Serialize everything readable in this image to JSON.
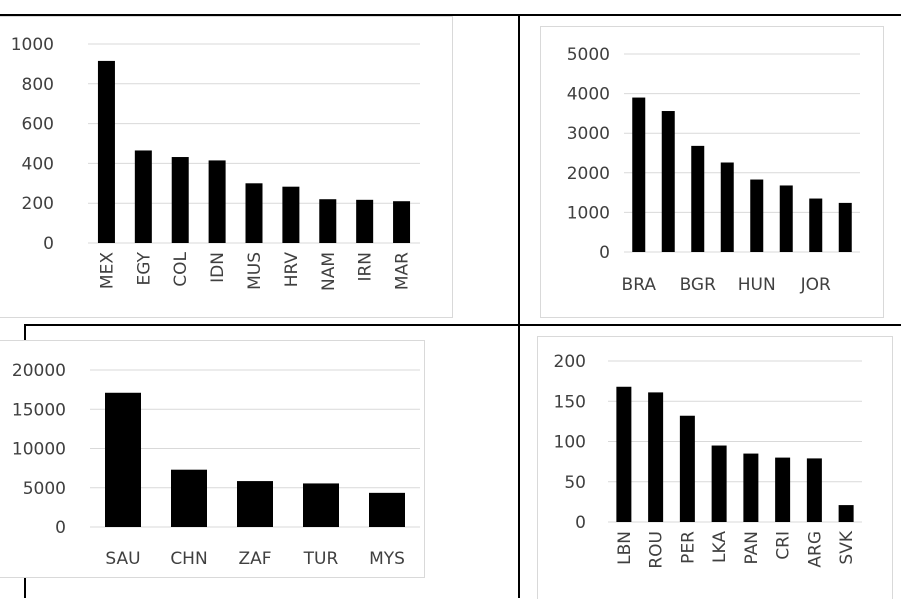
{
  "chart_data": [
    {
      "type": "bar",
      "categories": [
        "MEX",
        "EGY",
        "COL",
        "IDN",
        "MUS",
        "HRV",
        "NAM",
        "IRN",
        "MAR"
      ],
      "values": [
        915,
        465,
        432,
        415,
        300,
        283,
        220,
        217,
        210
      ],
      "ylim": [
        0,
        1000
      ],
      "yticks": [
        "0",
        "200",
        "400",
        "600",
        "800",
        "1000"
      ],
      "grid": true,
      "bar_color": "#000000"
    },
    {
      "type": "bar",
      "categories": [
        "BRA",
        "",
        "BGR",
        "",
        "HUN",
        "",
        "JOR",
        ""
      ],
      "values": [
        3900,
        3560,
        2680,
        2260,
        1830,
        1680,
        1350,
        1240
      ],
      "ylim": [
        0,
        5000
      ],
      "yticks": [
        "0",
        "1000",
        "2000",
        "3000",
        "4000",
        "5000"
      ],
      "grid": true,
      "bar_color": "#000000"
    },
    {
      "type": "bar",
      "categories": [
        "SAU",
        "CHN",
        "ZAF",
        "TUR",
        "MYS"
      ],
      "values": [
        17100,
        7300,
        5850,
        5550,
        4350
      ],
      "ylim": [
        0,
        20000
      ],
      "yticks": [
        "0",
        "5000",
        "10000",
        "15000",
        "20000"
      ],
      "grid": true,
      "bar_color": "#000000"
    },
    {
      "type": "bar",
      "categories": [
        "LBN",
        "ROU",
        "PER",
        "LKA",
        "PAN",
        "CRI",
        "ARG",
        "SVK"
      ],
      "values": [
        168,
        161,
        132,
        95,
        85,
        80,
        79,
        21
      ],
      "ylim": [
        0,
        200
      ],
      "yticks": [
        "0",
        "50",
        "100",
        "150",
        "200"
      ],
      "grid": true,
      "bar_color": "#000000"
    }
  ]
}
